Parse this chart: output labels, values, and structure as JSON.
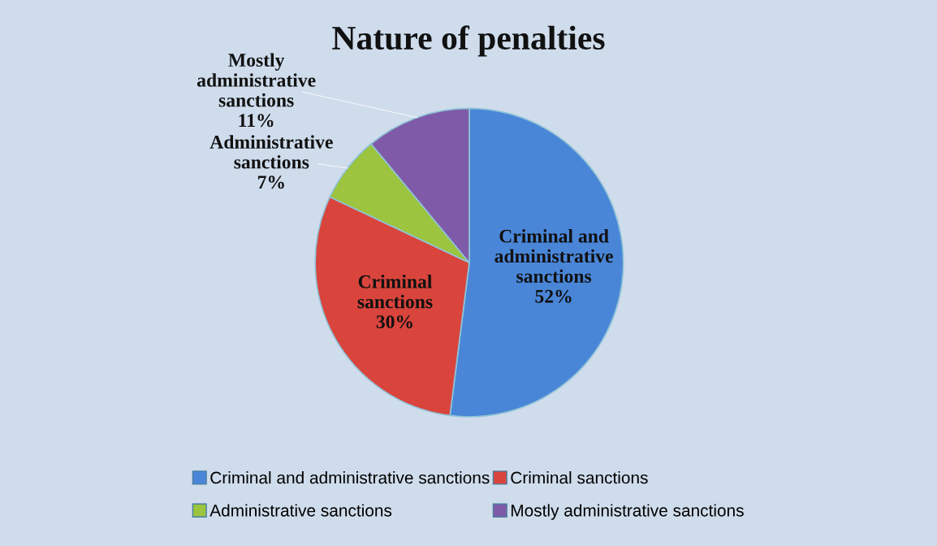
{
  "chart_data": {
    "type": "pie",
    "title": "Nature of penalties",
    "categories": [
      "Criminal and administrative sanctions",
      "Criminal sanctions",
      "Administrative sanctions",
      "Mostly administrative sanctions"
    ],
    "values": [
      52,
      30,
      7,
      11
    ],
    "colors": [
      "#4a86d8",
      "#d9443c",
      "#9cc43e",
      "#7f5aa8"
    ],
    "value_labels": [
      "Criminal and\nadministrative\nsanctions\n52%",
      "Criminal\nsanctions\n30%",
      "Administrative\nsanctions\n7%",
      "Mostly\nadministrative\nsanctions\n11%"
    ],
    "legend": "bottom"
  }
}
